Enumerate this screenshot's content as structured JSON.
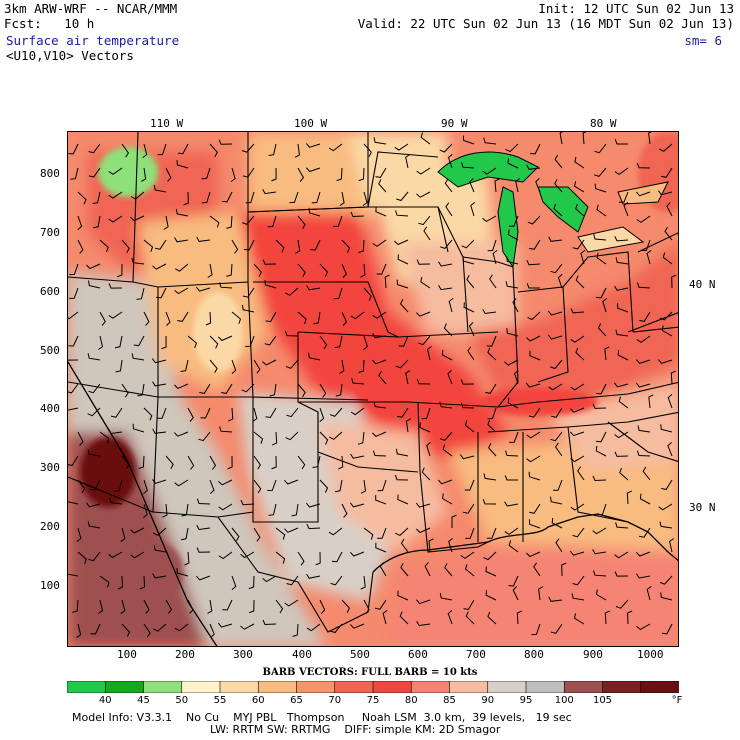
{
  "header": {
    "model_line": "3km ARW-WRF -- NCAR/MMM",
    "fcst_line": "Fcst:   10 h",
    "field_name": "Surface air temperature",
    "vector_name": "<U10,V10> Vectors",
    "init_line": "Init: 12 UTC Sun 02 Jun 13",
    "valid_line": "Valid: 22 UTC Sun 02 Jun 13 (16 MDT Sun 02 Jun 13)",
    "smoothing": "sm= 6"
  },
  "map": {
    "longitude_labels": [
      "110 W",
      "100 W",
      "90 W",
      "80 W"
    ],
    "latitude_labels": [
      "40 N",
      "30 N"
    ],
    "y_ticks": [
      "800",
      "700",
      "600",
      "500",
      "400",
      "300",
      "200",
      "100"
    ],
    "x_ticks": [
      "100",
      "200",
      "300",
      "400",
      "500",
      "600",
      "700",
      "800",
      "900",
      "1000"
    ]
  },
  "legend": {
    "title": "BARB VECTORS:  FULL BARB = 10 kts",
    "unit": "°F",
    "boundaries": [
      "40",
      "45",
      "50",
      "55",
      "60",
      "65",
      "70",
      "75",
      "80",
      "85",
      "90",
      "95",
      "100",
      "105"
    ],
    "colors": [
      "#22c84a",
      "#16a81e",
      "#8ee07a",
      "#fff2cc",
      "#fbd9a6",
      "#f8bb80",
      "#f4966a",
      "#f06552",
      "#f2453d",
      "#f58474",
      "#f6bca0",
      "#d8d0c8",
      "#bfbfbf",
      "#9e5050",
      "#7a2020",
      "#6a1010"
    ]
  },
  "model_info": {
    "line1": "Model Info: V3.3.1    No Cu    MYJ PBL   Thompson     Noah LSM  3.0 km,  39 levels,   19 sec",
    "line2": "LW: RRTM SW: RRTMG    DIFF: simple KM: 2D Smagor"
  }
}
